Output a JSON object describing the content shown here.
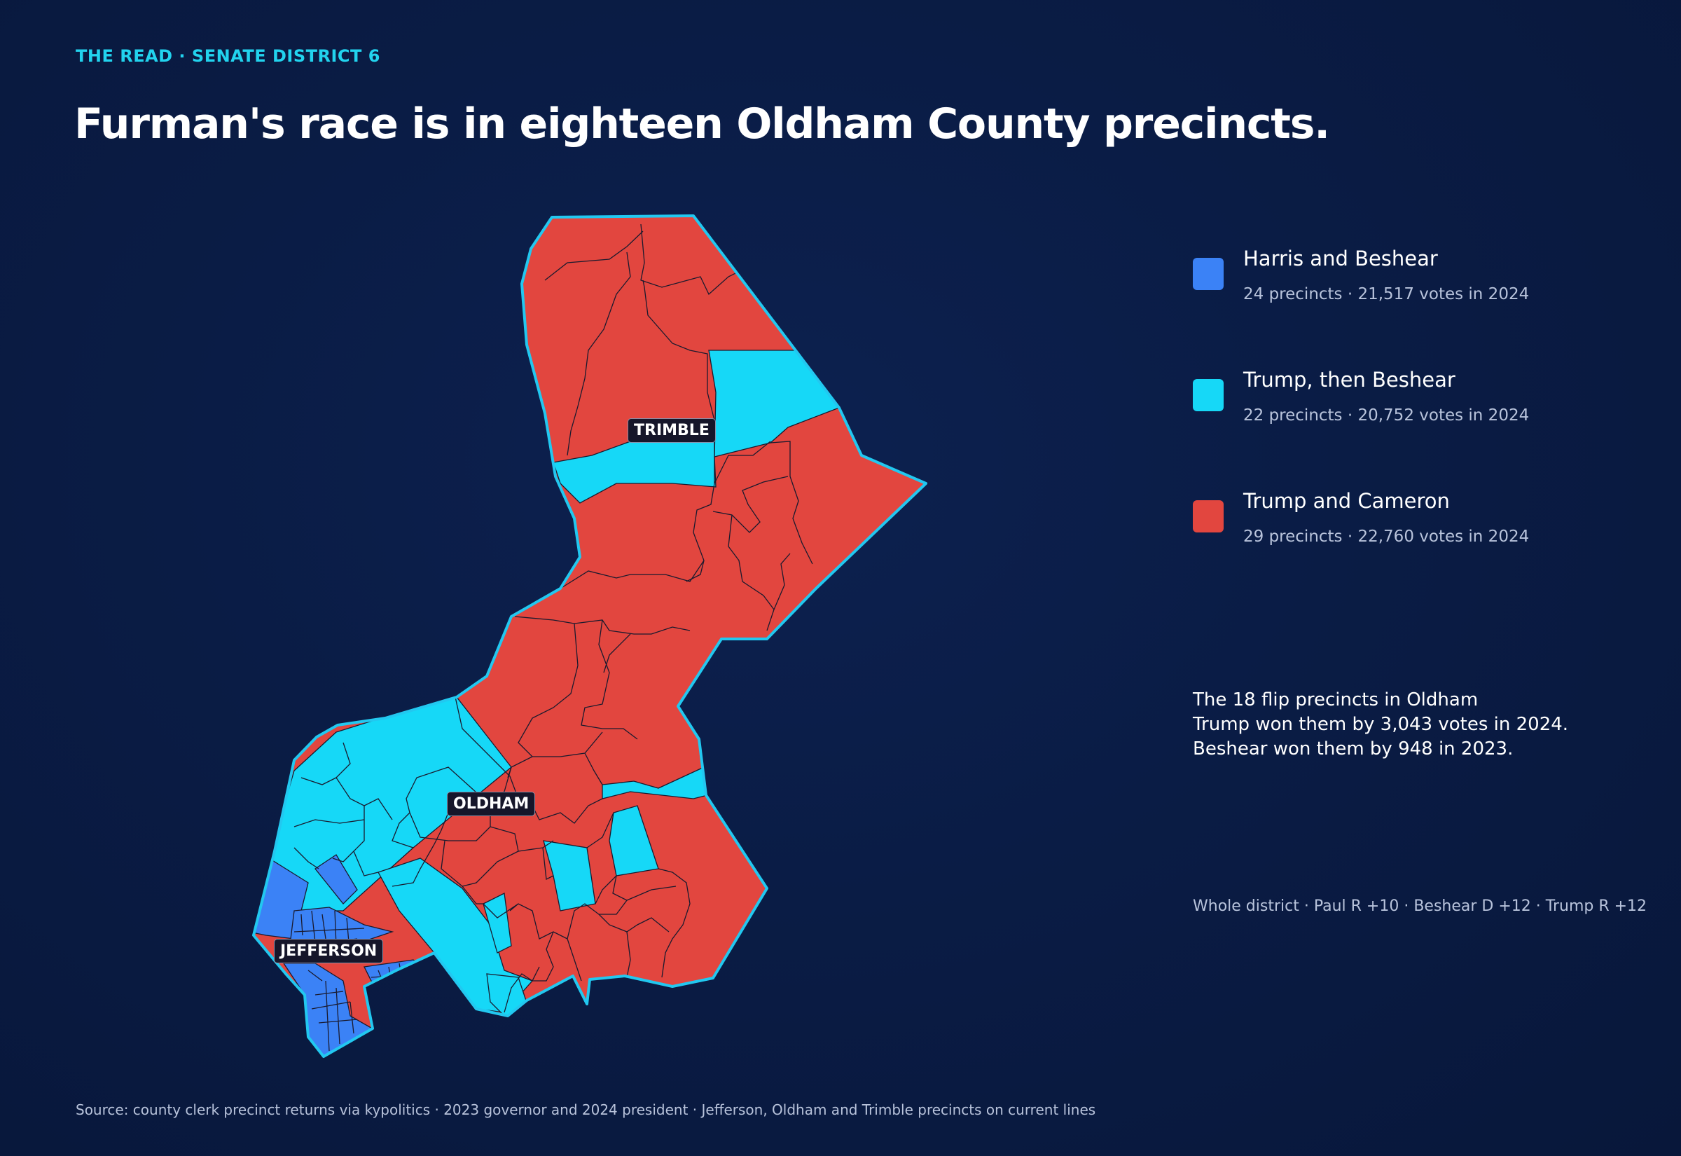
{
  "kicker": "THE READ · SENATE DISTRICT 6",
  "headline": "Furman's race is in eighteen Oldham County precincts.",
  "map": {
    "county_labels": {
      "trimble": "TRIMBLE",
      "oldham": "OLDHAM",
      "jefferson": "JEFFERSON"
    },
    "colors": {
      "harris_beshear": "#3b82f6",
      "trump_beshear": "#16d8f7",
      "trump_cameron": "#e2463f",
      "district_outline": "#22c8f0",
      "precinct_line": "#1a1a2e"
    }
  },
  "legend": [
    {
      "label": "Harris and Beshear",
      "stat": "24 precincts · 21,517 votes in 2024",
      "color": "#3b82f6"
    },
    {
      "label": "Trump, then Beshear",
      "stat": "22 precincts · 20,752 votes in 2024",
      "color": "#16d8f7"
    },
    {
      "label": "Trump and Cameron",
      "stat": "29 precincts · 22,760 votes in 2024",
      "color": "#e2463f"
    }
  ],
  "note": {
    "line1": "The 18 flip precincts in Oldham",
    "line2": "Trump won them by 3,043 votes in 2024.",
    "line3": "Beshear won them by 948 in 2023."
  },
  "whole_district": "Whole district · Paul R +10 · Beshear D +12 · Trump R +12",
  "source": "Source: county clerk precinct returns via kypolitics · 2023 governor and 2024 president · Jefferson, Oldham and Trimble precincts on current lines"
}
